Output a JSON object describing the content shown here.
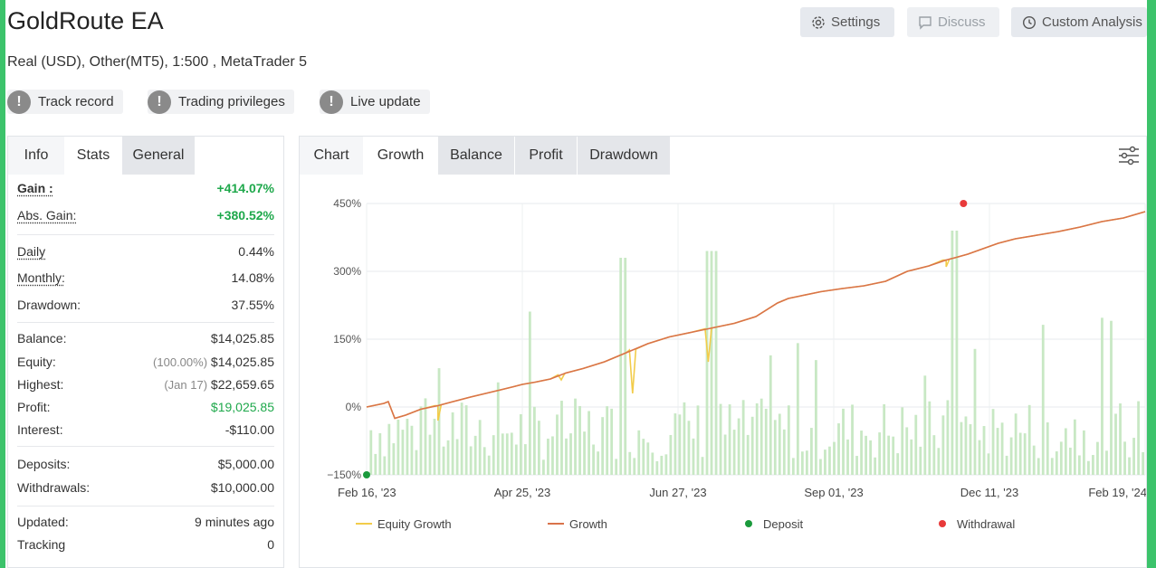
{
  "header": {
    "title": "GoldRoute EA",
    "subtitle": "Real (USD), Other(MT5), 1:500 , MetaTrader 5",
    "buttons": {
      "settings": "Settings",
      "discuss": "Discuss",
      "custom_analysis": "Custom Analysis"
    },
    "badges": [
      "Track record",
      "Trading privileges",
      "Live update"
    ]
  },
  "left_tabs": [
    "Info",
    "Stats",
    "General"
  ],
  "stats": {
    "gain_label": "Gain :",
    "gain": "+414.07%",
    "abs_gain_label": "Abs. Gain:",
    "abs_gain": "+380.52%",
    "daily_label": "Daily",
    "daily": "0.44%",
    "monthly_label": "Monthly:",
    "monthly": "14.08%",
    "drawdown_label": "Drawdown:",
    "drawdown": "37.55%",
    "balance_label": "Balance:",
    "balance": "$14,025.85",
    "equity_label": "Equity:",
    "equity_pct": "(100.00%)",
    "equity": "$14,025.85",
    "highest_label": "Highest:",
    "highest_date": "(Jan 17)",
    "highest": "$22,659.65",
    "profit_label": "Profit:",
    "profit": "$19,025.85",
    "interest_label": "Interest:",
    "interest": "-$110.00",
    "deposits_label": "Deposits:",
    "deposits": "$5,000.00",
    "withdrawals_label": "Withdrawals:",
    "withdrawals": "$10,000.00",
    "updated_label": "Updated:",
    "updated": "9 minutes ago",
    "tracking_label": "Tracking",
    "tracking": "0"
  },
  "chart_tabs": [
    "Chart",
    "Growth",
    "Balance",
    "Profit",
    "Drawdown"
  ],
  "icons": {
    "settings": "gear-icon",
    "discuss": "chat-icon",
    "custom_analysis": "clock-icon",
    "filter": "sliders-icon",
    "badge": "exclamation-icon"
  },
  "colors": {
    "growth": "#d9734a",
    "equity": "#f2cc4a",
    "deposit": "#1a9a3c",
    "withdrawal": "#e83a3a",
    "bars": "#c8e8c4",
    "positive": "#1ea84b"
  },
  "chart_data": {
    "type": "line",
    "x_ticks": [
      "Feb 16, '23",
      "Apr 25, '23",
      "Jun 27, '23",
      "Sep 01, '23",
      "Dec 11, '23",
      "Feb 19, '24"
    ],
    "y_ticks": [
      "450%",
      "300%",
      "150%",
      "0%",
      "−150%"
    ],
    "ylim": [
      -150,
      450
    ],
    "legend": [
      "Equity Growth",
      "Growth",
      "Deposit",
      "Withdrawal"
    ],
    "growth": {
      "x": [
        0,
        8,
        10,
        13,
        18,
        25,
        33,
        40,
        48,
        55,
        62,
        68,
        72,
        78,
        85,
        92,
        100,
        110,
        120,
        130,
        140,
        150,
        160,
        170,
        180,
        190,
        195,
        200,
        210,
        220,
        230,
        240,
        250,
        260,
        268,
        272,
        278,
        285,
        292,
        300,
        310,
        320,
        330,
        340,
        350,
        360
      ],
      "y": [
        0,
        8,
        12,
        -25,
        -18,
        -5,
        3,
        12,
        22,
        30,
        38,
        45,
        50,
        55,
        62,
        75,
        85,
        100,
        120,
        140,
        155,
        165,
        175,
        185,
        200,
        230,
        240,
        245,
        255,
        262,
        268,
        278,
        300,
        312,
        325,
        330,
        338,
        350,
        362,
        372,
        380,
        388,
        398,
        410,
        418,
        432
      ]
    },
    "equity_dips": [
      {
        "x": 33,
        "y": -30
      },
      {
        "x": 90,
        "y": 60
      },
      {
        "x": 123,
        "y": 30
      },
      {
        "x": 158,
        "y": 100
      },
      {
        "x": 268,
        "y": 310
      }
    ],
    "deposit": {
      "x": 0,
      "y": -150
    },
    "withdrawal": {
      "x": 276,
      "y": 450
    }
  }
}
